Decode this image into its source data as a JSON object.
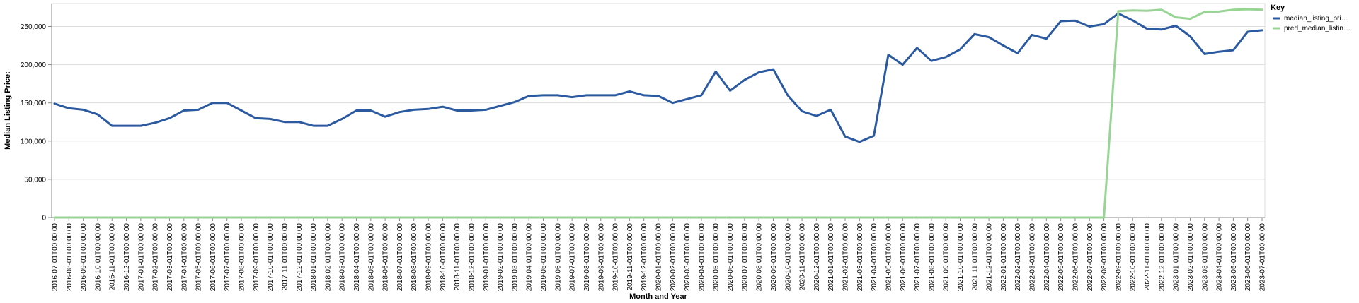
{
  "chart_data": {
    "type": "line",
    "xlabel": "Month and Year",
    "ylabel": "Median Listing Price:",
    "ylim": [
      0,
      280000
    ],
    "y_ticks": [
      0,
      50000,
      100000,
      150000,
      200000,
      250000
    ],
    "y_tick_labels": [
      "0",
      "50,000",
      "100,000",
      "150,000",
      "200,000",
      "250,000"
    ],
    "grid": true,
    "legend_position": "right",
    "legend_title": "Key",
    "x": [
      "2016-07-01T00:00:00",
      "2016-08-01T00:00:00",
      "2016-09-01T00:00:00",
      "2016-10-01T00:00:00",
      "2016-11-01T00:00:00",
      "2016-12-01T00:00:00",
      "2017-01-01T00:00:00",
      "2017-02-01T00:00:00",
      "2017-03-01T00:00:00",
      "2017-04-01T00:00:00",
      "2017-05-01T00:00:00",
      "2017-06-01T00:00:00",
      "2017-07-01T00:00:00",
      "2017-08-01T00:00:00",
      "2017-09-01T00:00:00",
      "2017-10-01T00:00:00",
      "2017-11-01T00:00:00",
      "2017-12-01T00:00:00",
      "2018-01-01T00:00:00",
      "2018-02-01T00:00:00",
      "2018-03-01T00:00:00",
      "2018-04-01T00:00:00",
      "2018-05-01T00:00:00",
      "2018-06-01T00:00:00",
      "2018-07-01T00:00:00",
      "2018-08-01T00:00:00",
      "2018-09-01T00:00:00",
      "2018-10-01T00:00:00",
      "2018-11-01T00:00:00",
      "2018-12-01T00:00:00",
      "2019-01-01T00:00:00",
      "2019-02-01T00:00:00",
      "2019-03-01T00:00:00",
      "2019-04-01T00:00:00",
      "2019-05-01T00:00:00",
      "2019-06-01T00:00:00",
      "2019-07-01T00:00:00",
      "2019-08-01T00:00:00",
      "2019-09-01T00:00:00",
      "2019-10-01T00:00:00",
      "2019-11-01T00:00:00",
      "2019-12-01T00:00:00",
      "2020-01-01T00:00:00",
      "2020-02-01T00:00:00",
      "2020-03-01T00:00:00",
      "2020-04-01T00:00:00",
      "2020-05-01T00:00:00",
      "2020-06-01T00:00:00",
      "2020-07-01T00:00:00",
      "2020-08-01T00:00:00",
      "2020-09-01T00:00:00",
      "2020-10-01T00:00:00",
      "2020-11-01T00:00:00",
      "2020-12-01T00:00:00",
      "2021-01-01T00:00:00",
      "2021-02-01T00:00:00",
      "2021-03-01T00:00:00",
      "2021-04-01T00:00:00",
      "2021-05-01T00:00:00",
      "2021-06-01T00:00:00",
      "2021-07-01T00:00:00",
      "2021-08-01T00:00:00",
      "2021-09-01T00:00:00",
      "2021-10-01T00:00:00",
      "2021-11-01T00:00:00",
      "2021-12-01T00:00:00",
      "2022-01-01T00:00:00",
      "2022-02-01T00:00:00",
      "2022-03-01T00:00:00",
      "2022-04-01T00:00:00",
      "2022-05-01T00:00:00",
      "2022-06-01T00:00:00",
      "2022-07-01T00:00:00",
      "2022-08-01T00:00:00",
      "2022-09-01T00:00:00",
      "2022-10-01T00:00:00",
      "2022-11-01T00:00:00",
      "2022-12-01T00:00:00",
      "2023-01-01T00:00:00",
      "2023-02-01T00:00:00",
      "2023-03-01T00:00:00",
      "2023-04-01T00:00:00",
      "2023-05-01T00:00:00",
      "2023-06-01T00:00:00",
      "2023-07-01T00:00:00"
    ],
    "series": [
      {
        "name": "median_listing_pri…",
        "color": "#2c5aa0",
        "values": [
          149000,
          143000,
          141000,
          135000,
          120000,
          120000,
          120000,
          124000,
          130000,
          140000,
          141000,
          150000,
          150000,
          140000,
          130000,
          129000,
          125000,
          125000,
          120000,
          120000,
          129000,
          140000,
          140000,
          132000,
          138000,
          141000,
          142000,
          145000,
          140000,
          140000,
          141000,
          146000,
          151000,
          159000,
          160000,
          160000,
          157500,
          160000,
          160000,
          160000,
          165000,
          160000,
          159000,
          150000,
          155000,
          160000,
          191000,
          166000,
          180000,
          190000,
          194000,
          160000,
          139000,
          133000,
          141000,
          106000,
          99000,
          107000,
          213000,
          200000,
          222000,
          205000,
          210000,
          220000,
          240000,
          236000,
          225000,
          215000,
          239000,
          234000,
          257000,
          257500,
          250000,
          253000,
          267000,
          258000,
          247000,
          246000,
          251000,
          237000,
          214000,
          217000,
          219000,
          243000,
          245000
        ]
      },
      {
        "name": "pred_median_listin…",
        "color": "#98d594",
        "values": [
          0,
          0,
          0,
          0,
          0,
          0,
          0,
          0,
          0,
          0,
          0,
          0,
          0,
          0,
          0,
          0,
          0,
          0,
          0,
          0,
          0,
          0,
          0,
          0,
          0,
          0,
          0,
          0,
          0,
          0,
          0,
          0,
          0,
          0,
          0,
          0,
          0,
          0,
          0,
          0,
          0,
          0,
          0,
          0,
          0,
          0,
          0,
          0,
          0,
          0,
          0,
          0,
          0,
          0,
          0,
          0,
          0,
          0,
          0,
          0,
          0,
          0,
          0,
          0,
          0,
          0,
          0,
          0,
          0,
          0,
          0,
          0,
          0,
          0,
          270000,
          271000,
          270500,
          272000,
          262000,
          260000,
          269000,
          269500,
          272000,
          272500,
          272000
        ]
      }
    ]
  }
}
